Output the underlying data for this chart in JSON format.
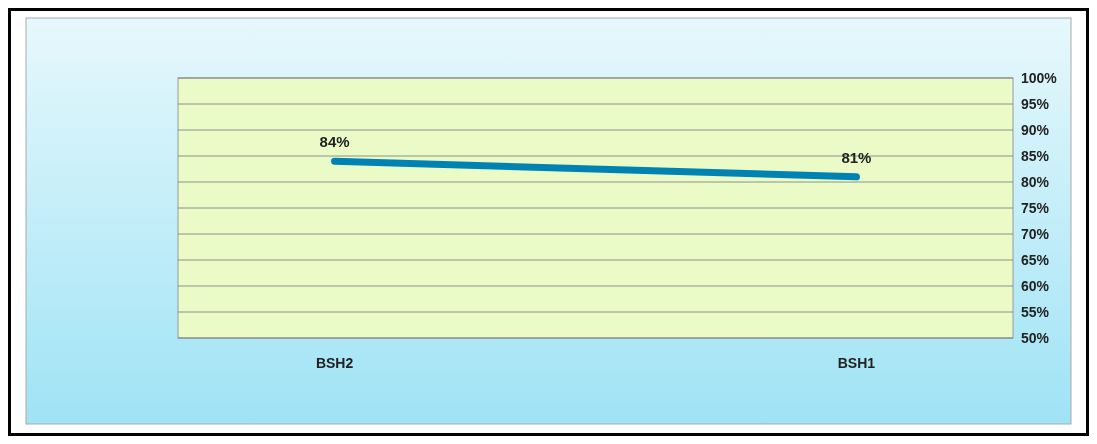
{
  "chart_data": {
    "type": "line",
    "categories": [
      "BSH2",
      "BSH1"
    ],
    "series": [
      {
        "color": "#0083b3",
        "values": [
          84,
          81
        ],
        "value_labels": [
          "84%",
          "81%"
        ]
      }
    ],
    "ylim": [
      50,
      100
    ],
    "yticks": [
      {
        "value": 50,
        "label": "50%"
      },
      {
        "value": 55,
        "label": "55%"
      },
      {
        "value": 60,
        "label": "60%"
      },
      {
        "value": 65,
        "label": "65%"
      },
      {
        "value": 70,
        "label": "70%"
      },
      {
        "value": 75,
        "label": "75%"
      },
      {
        "value": 80,
        "label": "80%"
      },
      {
        "value": 85,
        "label": "85%"
      },
      {
        "value": 90,
        "label": "90%"
      },
      {
        "value": 95,
        "label": "95%"
      },
      {
        "value": 100,
        "label": "100%"
      }
    ],
    "grid": "y",
    "marker": "none"
  }
}
